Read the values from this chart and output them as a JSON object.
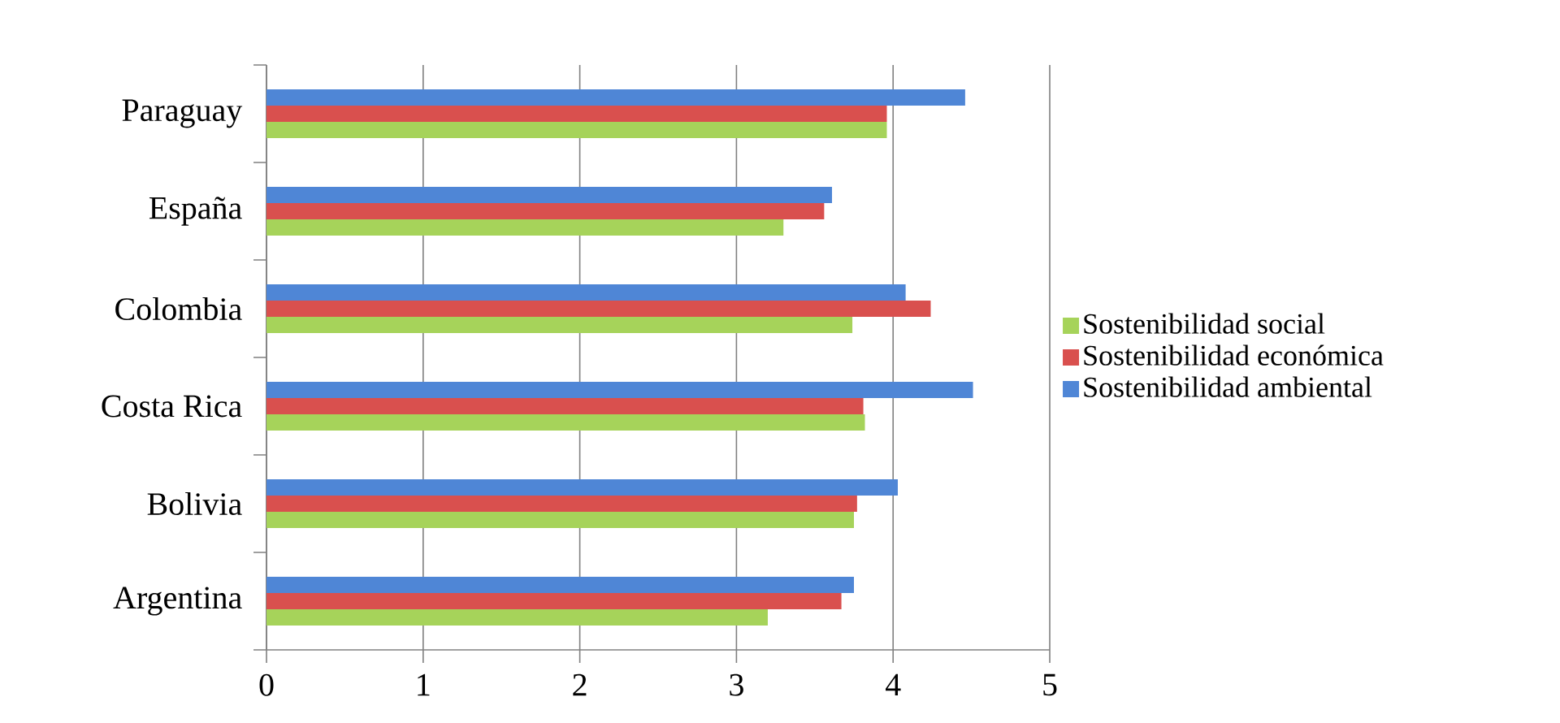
{
  "chart_data": {
    "type": "bar",
    "orientation": "horizontal",
    "categories": [
      "Paraguay",
      "España",
      "Colombia",
      "Costa Rica",
      "Bolivia",
      "Argentina"
    ],
    "series": [
      {
        "name": "Sostenibilidad ambiental",
        "color": "#4f86d6",
        "values": [
          4.46,
          3.61,
          4.08,
          4.51,
          4.03,
          3.75
        ]
      },
      {
        "name": "Sostenibilidad económica",
        "color": "#d9504e",
        "values": [
          3.96,
          3.56,
          4.24,
          3.81,
          3.77,
          3.67
        ]
      },
      {
        "name": "Sostenibilidad social",
        "color": "#a6d35a",
        "values": [
          3.96,
          3.3,
          3.74,
          3.82,
          3.75,
          3.2
        ]
      }
    ],
    "xlim": [
      0,
      5
    ],
    "xticks": [
      0,
      1,
      2,
      3,
      4,
      5
    ],
    "grid": "x",
    "legend": "right"
  }
}
